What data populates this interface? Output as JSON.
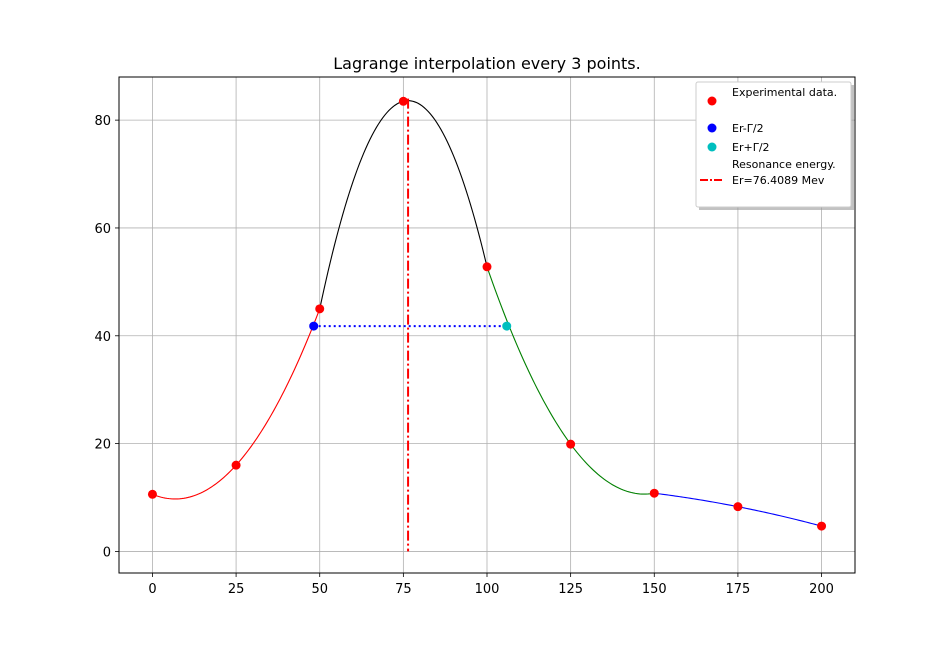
{
  "chart_data": {
    "type": "line",
    "title": "Lagrange interpolation every 3 points.",
    "xlabel": "",
    "ylabel": "",
    "xlim": [
      -10,
      210
    ],
    "ylim": [
      -4,
      88
    ],
    "grid": true,
    "x_ticks": [
      0,
      25,
      50,
      75,
      100,
      125,
      150,
      175,
      200
    ],
    "y_ticks": [
      0,
      20,
      40,
      60,
      80
    ],
    "experimental_points": {
      "x": [
        0,
        25,
        50,
        75,
        100,
        125,
        150,
        175,
        200
      ],
      "y": [
        10.6,
        16.0,
        45.0,
        83.5,
        52.8,
        19.9,
        10.8,
        8.3,
        4.7
      ]
    },
    "interpolation_segments": [
      {
        "x_points": [
          0,
          25,
          50
        ],
        "color": "#ff0000"
      },
      {
        "x_points": [
          50,
          75,
          100
        ],
        "color": "#000000"
      },
      {
        "x_points": [
          100,
          125,
          150
        ],
        "color": "#008000"
      },
      {
        "x_points": [
          150,
          175,
          200
        ],
        "color": "#0000ff"
      }
    ],
    "half_width": {
      "left": {
        "x": 48.2,
        "y": 41.8,
        "color": "#0000ff"
      },
      "right": {
        "x": 105.9,
        "y": 41.8,
        "color": "#00bfbf"
      },
      "line_color": "#0000ff"
    },
    "resonance": {
      "x": 76.4089,
      "y_top": 84.0,
      "color": "#ff0000"
    },
    "legend": {
      "placement": "top-right",
      "entries": [
        {
          "label": "Experimental data.",
          "marker": "dot",
          "color": "#ff0000"
        },
        {
          "label": "Er-Γ/2",
          "marker": "dot",
          "color": "#0000ff"
        },
        {
          "label": "Er+Γ/2",
          "marker": "dot",
          "color": "#00bfbf"
        },
        {
          "label": "Resonance energy.",
          "label2": "Er=76.4089 Mev",
          "marker": "dashdot",
          "color": "#ff0000"
        }
      ]
    }
  }
}
